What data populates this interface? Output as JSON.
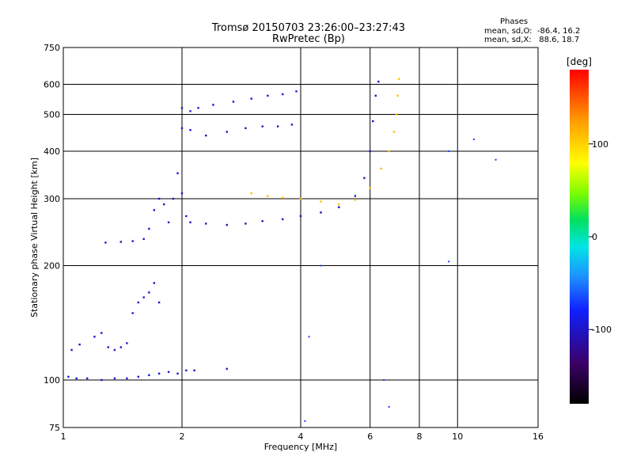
{
  "header": {
    "title_line1": "Tromsø 20150703 23:26:00–23:27:43",
    "title_line2": "RwPretec (Bp)",
    "stats_title": "Phases",
    "stats_line1": "mean, sd,O:  -86.4, 16.2",
    "stats_line2": "mean, sd,X:   88.6, 18.7"
  },
  "colorbar": {
    "unit": "[deg]",
    "tick_labels": [
      "100",
      "0",
      "-100"
    ],
    "tick_values": [
      100,
      0,
      -100
    ],
    "range": [
      -180,
      180
    ],
    "colors": [
      "#000000",
      "#3b0066",
      "#1020ff",
      "#1e90ff",
      "#00e5e5",
      "#00e060",
      "#7cfc00",
      "#ffff00",
      "#ff9900",
      "#ff0000"
    ]
  },
  "chart_data": {
    "type": "scatter",
    "title": "Tromsø 20150703 23:26:00–23:27:43",
    "subtitle": "RwPretec (Bp)",
    "xlabel": "Frequency [MHz]",
    "ylabel": "Stationary phase Virtual Height [km]",
    "xscale": "log",
    "yscale": "log",
    "xlim": [
      1,
      16
    ],
    "ylim": [
      75,
      750
    ],
    "x_ticks": [
      1,
      2,
      4,
      6,
      8,
      10,
      16
    ],
    "x_tick_labels": [
      "1",
      "2",
      "4",
      "6",
      "8",
      "10",
      "16"
    ],
    "y_ticks": [
      75,
      100,
      200,
      300,
      400,
      500,
      600,
      750
    ],
    "y_tick_labels": [
      "75",
      "100",
      "200",
      "300",
      "400",
      "500",
      "600",
      "750"
    ],
    "grid": true,
    "color_scale": "phase [deg], -180 to 180",
    "series": [
      {
        "phase": -95,
        "points": [
          [
            1.03,
            102
          ],
          [
            1.08,
            101
          ],
          [
            1.15,
            101
          ],
          [
            1.25,
            100
          ],
          [
            1.35,
            101
          ],
          [
            1.45,
            101
          ],
          [
            1.55,
            102
          ],
          [
            1.65,
            103
          ],
          [
            1.75,
            104
          ],
          [
            1.85,
            105
          ],
          [
            1.95,
            104
          ],
          [
            2.05,
            106
          ],
          [
            2.15,
            106
          ],
          [
            2.6,
            107
          ]
        ]
      },
      {
        "phase": -100,
        "points": [
          [
            1.05,
            120
          ],
          [
            1.1,
            124
          ],
          [
            1.2,
            130
          ],
          [
            1.25,
            133
          ],
          [
            1.3,
            122
          ],
          [
            1.35,
            120
          ],
          [
            1.4,
            122
          ],
          [
            1.45,
            125
          ],
          [
            1.5,
            150
          ],
          [
            1.55,
            160
          ],
          [
            1.6,
            165
          ],
          [
            1.65,
            170
          ],
          [
            1.7,
            180
          ],
          [
            1.75,
            160
          ]
        ]
      },
      {
        "phase": -100,
        "points": [
          [
            1.28,
            230
          ],
          [
            1.4,
            231
          ],
          [
            1.5,
            232
          ],
          [
            1.6,
            235
          ],
          [
            1.65,
            250
          ],
          [
            1.7,
            280
          ],
          [
            1.75,
            300
          ],
          [
            1.8,
            290
          ],
          [
            1.85,
            260
          ],
          [
            1.9,
            300
          ],
          [
            1.95,
            350
          ],
          [
            2.0,
            310
          ],
          [
            2.05,
            270
          ]
        ]
      },
      {
        "phase": -95,
        "points": [
          [
            2.0,
            520
          ],
          [
            2.1,
            510
          ],
          [
            2.2,
            520
          ],
          [
            2.4,
            530
          ],
          [
            2.7,
            540
          ],
          [
            3.0,
            550
          ],
          [
            3.3,
            560
          ],
          [
            3.6,
            565
          ],
          [
            3.9,
            575
          ]
        ]
      },
      {
        "phase": -100,
        "points": [
          [
            2.0,
            460
          ],
          [
            2.1,
            455
          ],
          [
            2.3,
            440
          ],
          [
            2.6,
            450
          ],
          [
            2.9,
            460
          ],
          [
            3.2,
            465
          ],
          [
            3.5,
            465
          ],
          [
            3.8,
            470
          ]
        ]
      },
      {
        "phase": -105,
        "points": [
          [
            2.1,
            260
          ],
          [
            2.3,
            258
          ],
          [
            2.6,
            256
          ],
          [
            2.9,
            258
          ],
          [
            3.2,
            262
          ],
          [
            3.6,
            265
          ],
          [
            4.0,
            270
          ],
          [
            4.5,
            276
          ],
          [
            5.0,
            285
          ],
          [
            5.5,
            305
          ],
          [
            5.8,
            340
          ],
          [
            6.0,
            400
          ],
          [
            6.1,
            480
          ],
          [
            6.2,
            560
          ],
          [
            6.3,
            610
          ]
        ]
      },
      {
        "phase": 108,
        "points": [
          [
            3.0,
            310
          ],
          [
            3.3,
            305
          ],
          [
            3.6,
            302
          ],
          [
            4.0,
            300
          ],
          [
            4.5,
            295
          ],
          [
            5.0,
            290
          ],
          [
            5.5,
            298
          ],
          [
            6.0,
            320
          ],
          [
            6.4,
            360
          ],
          [
            6.7,
            400
          ],
          [
            6.9,
            450
          ],
          [
            7.0,
            500
          ],
          [
            7.05,
            560
          ],
          [
            7.1,
            620
          ]
        ]
      }
    ],
    "outliers": [
      [
        11.0,
        430
      ],
      [
        9.5,
        400
      ],
      [
        12.5,
        380
      ],
      [
        9.5,
        205
      ],
      [
        4.5,
        200
      ],
      [
        4.2,
        130
      ],
      [
        6.5,
        100
      ],
      [
        4.1,
        78
      ],
      [
        6.7,
        85
      ]
    ]
  }
}
